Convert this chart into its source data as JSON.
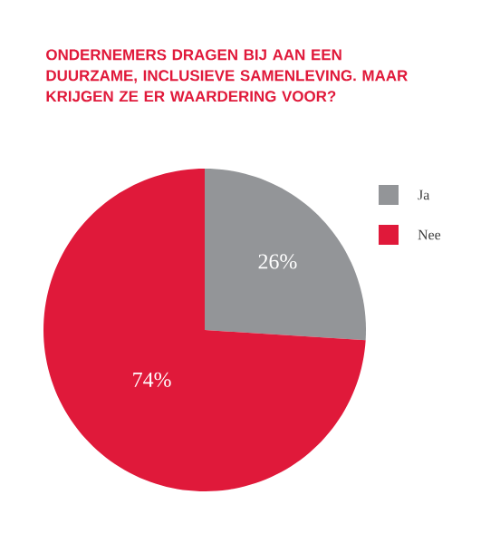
{
  "chart_data": {
    "type": "pie",
    "title": "ONDERNEMERS DRAGEN BIJ AAN EEN DUURZAME, INCLUSIEVE SAMENLEVING. MAAR KRIJGEN ZE ER WAARDERING VOOR?",
    "categories": [
      "Ja",
      "Nee"
    ],
    "values": [
      26,
      74
    ],
    "colors": [
      "#939598",
      "#e0193a"
    ],
    "value_labels": [
      "26%",
      "74%"
    ],
    "legend": "top right"
  }
}
